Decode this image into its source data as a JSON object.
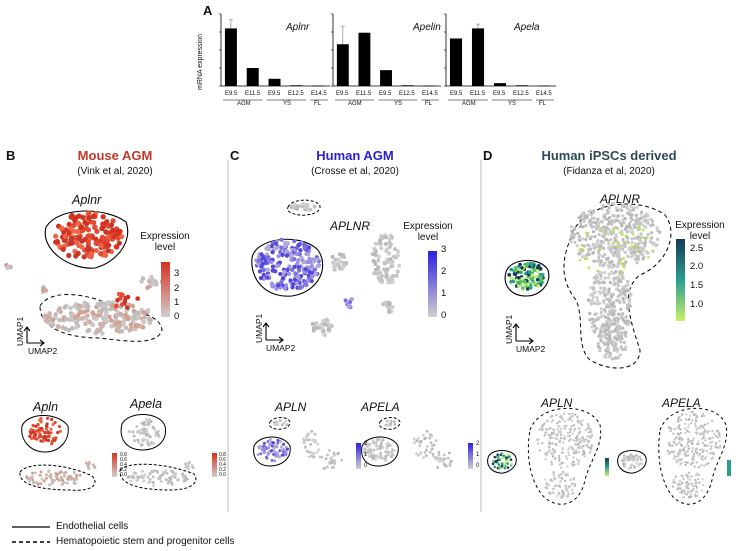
{
  "panel_a": {
    "letter": "A",
    "ylabel": "mRNA expression",
    "tick_labels": [
      "E9.5",
      "E11.5",
      "E9.5",
      "E12.5",
      "E14.5"
    ],
    "group_labels": [
      "AGM",
      "YS",
      "FL"
    ],
    "colors": {
      "bar": "#000000",
      "error": "#888888"
    }
  },
  "chart_data": [
    {
      "type": "bar",
      "title": "Aplnr",
      "categories": [
        "AGM E9.5",
        "AGM E11.5",
        "YS E9.5",
        "YS E12.5",
        "FL E14.5"
      ],
      "values": [
        0.8,
        0.25,
        0.1,
        0.01,
        0.005
      ],
      "errors": [
        0.12,
        0,
        0,
        0,
        0
      ],
      "ylim": [
        0,
        1
      ]
    },
    {
      "type": "bar",
      "title": "Apelin",
      "categories": [
        "AGM E9.5",
        "AGM E11.5",
        "YS E9.5",
        "YS E12.5",
        "FL E14.5"
      ],
      "values": [
        0.58,
        0.74,
        0.22,
        0.01,
        0.005
      ],
      "errors": [
        0.25,
        0,
        0,
        0,
        0
      ],
      "ylim": [
        0,
        1
      ]
    },
    {
      "type": "bar",
      "title": "Apela",
      "categories": [
        "AGM E9.5",
        "AGM E11.5",
        "YS E9.5",
        "YS E12.5",
        "FL E14.5"
      ],
      "values": [
        0.66,
        0.8,
        0.04,
        0.01,
        0.005
      ],
      "errors": [
        0,
        0.06,
        0,
        0,
        0
      ],
      "ylim": [
        0,
        1
      ]
    }
  ],
  "panel_b": {
    "letter": "B",
    "title": "Mouse AGM",
    "subtitle": "(Vink et al, 2020)",
    "gene_main": "Aplnr",
    "gene_left": "Apln",
    "gene_right": "Apela",
    "legend_title_1": "Expression",
    "legend_title_2": "level",
    "cbar_ticks": [
      "3",
      "2",
      "1",
      "0"
    ],
    "small_ticks": [
      "0.8",
      "0.6",
      "0.4",
      "0.2",
      "0.0"
    ],
    "umap1": "UMAP1",
    "umap2": "UMAP2",
    "colors": {
      "title": "#c0392b",
      "high": "#d7301f",
      "low": "#cccccc"
    }
  },
  "panel_c": {
    "letter": "C",
    "title": "Human AGM",
    "subtitle": "(Crosse et al, 2020)",
    "gene_main": "APLNR",
    "gene_left": "APLN",
    "gene_right": "APELA",
    "legend_title_1": "Expression",
    "legend_title_2": "level",
    "cbar_ticks": [
      "3",
      "2",
      "1",
      "0"
    ],
    "small_ticks_left": [
      "2",
      "1",
      "0"
    ],
    "small_ticks_right": [
      "2",
      "1",
      "0"
    ],
    "umap1": "UMAP1",
    "umap2": "UMAP2",
    "colors": {
      "title": "#2c1fd6",
      "high": "#2a1fe0",
      "low": "#cccccc"
    }
  },
  "panel_d": {
    "letter": "D",
    "title": "Human iPSCs derived",
    "subtitle": "(Fidanza et al, 2020)",
    "gene_main": "APLNR",
    "gene_left": "APLN",
    "gene_right": "APELA",
    "legend_title_1": "Expression",
    "legend_title_2": "level",
    "cbar_ticks": [
      "2.5",
      "2.0",
      "1.5",
      "1.0"
    ],
    "umap1": "UMAP1",
    "umap2": "UMAP2",
    "colors": {
      "title": "#2e4a57",
      "high": "#173a5a",
      "mid": "#2a9d8f",
      "low": "#c7f06a"
    }
  },
  "legend": {
    "solid": "Endothelial cells",
    "dashed": "Hematopoietic stem and progenitor cells"
  }
}
